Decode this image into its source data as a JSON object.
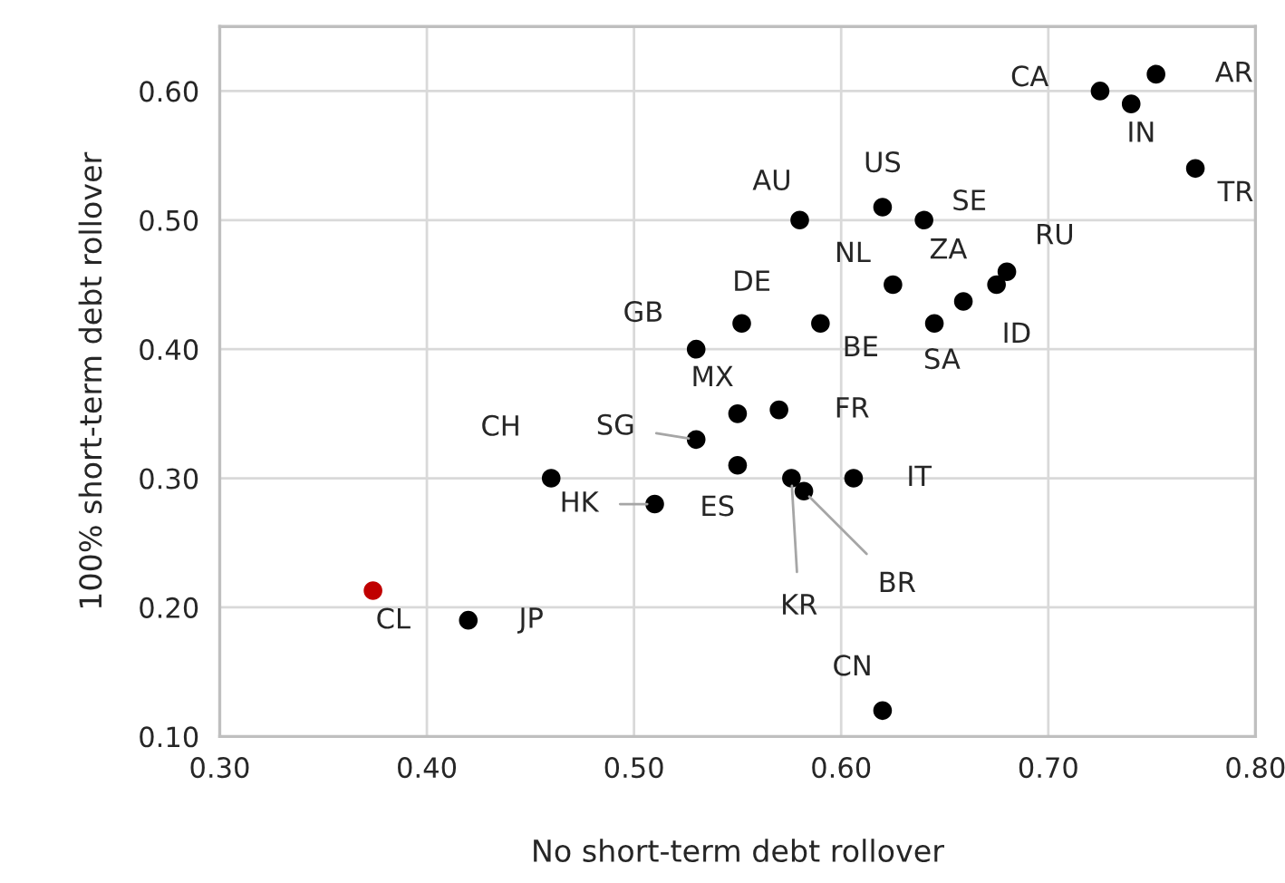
{
  "chart_data": {
    "type": "scatter",
    "xlabel": "No short-term debt rollover",
    "ylabel": "100% short-term debt rollover",
    "xlim": [
      0.3,
      0.8
    ],
    "xticks": [
      {
        "value": 0.3,
        "label": "0.30"
      },
      {
        "value": 0.4,
        "label": "0.40"
      },
      {
        "value": 0.5,
        "label": "0.50"
      },
      {
        "value": 0.6,
        "label": "0.60"
      },
      {
        "value": 0.7,
        "label": "0.70"
      },
      {
        "value": 0.8,
        "label": "0.80"
      }
    ],
    "ylim": [
      0.1,
      0.65
    ],
    "yticks": [
      {
        "value": 0.1,
        "label": "0.10"
      },
      {
        "value": 0.2,
        "label": "0.20"
      },
      {
        "value": 0.3,
        "label": "0.30"
      },
      {
        "value": 0.4,
        "label": "0.40"
      },
      {
        "value": 0.5,
        "label": "0.50"
      },
      {
        "value": 0.6,
        "label": "0.60"
      }
    ],
    "grid": true,
    "marker": "circle",
    "series": [
      {
        "x": [
          0.725,
          0.752,
          0.74,
          0.771,
          0.58,
          0.62,
          0.64,
          0.625,
          0.659,
          0.68,
          0.675,
          0.645,
          0.552,
          0.59,
          0.53,
          0.55,
          0.57,
          0.53,
          0.55,
          0.46,
          0.51,
          0.576,
          0.582,
          0.606,
          0.374,
          0.42,
          0.62
        ],
        "values": [
          0.6,
          0.613,
          0.59,
          0.54,
          0.5,
          0.51,
          0.5,
          0.45,
          0.437,
          0.46,
          0.45,
          0.42,
          0.42,
          0.42,
          0.4,
          0.35,
          0.353,
          0.33,
          0.31,
          0.3,
          0.28,
          0.3,
          0.29,
          0.3,
          0.213,
          0.19,
          0.12
        ],
        "colors": [
          "#000000",
          "#000000",
          "#000000",
          "#000000",
          "#000000",
          "#000000",
          "#000000",
          "#000000",
          "#000000",
          "#000000",
          "#000000",
          "#000000",
          "#000000",
          "#000000",
          "#000000",
          "#000000",
          "#000000",
          "#000000",
          "#000000",
          "#000000",
          "#000000",
          "#000000",
          "#000000",
          "#000000",
          "#c00000",
          "#000000",
          "#000000"
        ]
      }
    ],
    "annotations": [
      {
        "text": "CA",
        "x": 0.725,
        "y": 0.6
      },
      {
        "text": "AR",
        "x": 0.752,
        "y": 0.613
      },
      {
        "text": "IN",
        "x": 0.74,
        "y": 0.59
      },
      {
        "text": "TR",
        "x": 0.771,
        "y": 0.54
      },
      {
        "text": "AU",
        "x": 0.58,
        "y": 0.5
      },
      {
        "text": "US",
        "x": 0.62,
        "y": 0.51
      },
      {
        "text": "SE",
        "x": 0.64,
        "y": 0.5
      },
      {
        "text": "NL",
        "x": 0.625,
        "y": 0.45
      },
      {
        "text": "ZA",
        "x": 0.659,
        "y": 0.437
      },
      {
        "text": "RU",
        "x": 0.68,
        "y": 0.46
      },
      {
        "text": "ID",
        "x": 0.675,
        "y": 0.45
      },
      {
        "text": "SA",
        "x": 0.645,
        "y": 0.42
      },
      {
        "text": "DE",
        "x": 0.552,
        "y": 0.42
      },
      {
        "text": "BE",
        "x": 0.59,
        "y": 0.42
      },
      {
        "text": "GB",
        "x": 0.53,
        "y": 0.4
      },
      {
        "text": "MX",
        "x": 0.55,
        "y": 0.35
      },
      {
        "text": "FR",
        "x": 0.57,
        "y": 0.353
      },
      {
        "text": "SG",
        "x": 0.53,
        "y": 0.33
      },
      {
        "text": "ES",
        "x": 0.55,
        "y": 0.31
      },
      {
        "text": "CH",
        "x": 0.46,
        "y": 0.3
      },
      {
        "text": "HK",
        "x": 0.51,
        "y": 0.28
      },
      {
        "text": "KR",
        "x": 0.576,
        "y": 0.3
      },
      {
        "text": "BR",
        "x": 0.582,
        "y": 0.29
      },
      {
        "text": "IT",
        "x": 0.606,
        "y": 0.3
      },
      {
        "text": "CL",
        "x": 0.374,
        "y": 0.213
      },
      {
        "text": "JP",
        "x": 0.42,
        "y": 0.19
      },
      {
        "text": "CN",
        "x": 0.62,
        "y": 0.12
      }
    ]
  }
}
